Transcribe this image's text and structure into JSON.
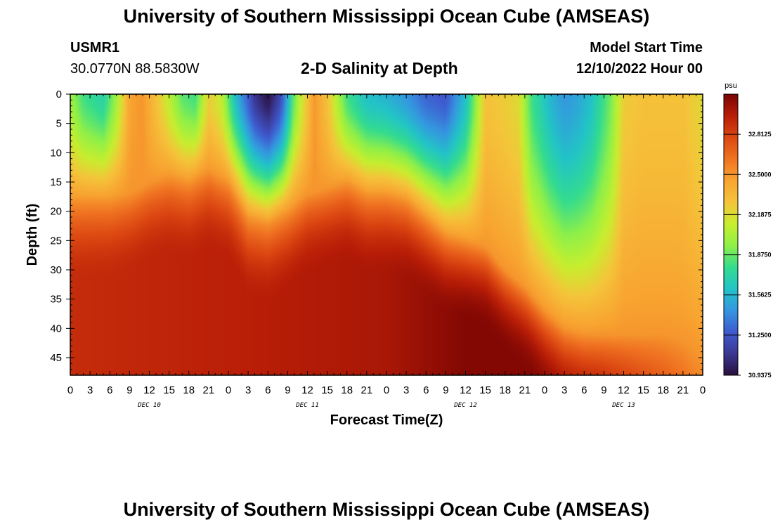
{
  "header": {
    "title": "University of Southern Mississippi Ocean Cube (AMSEAS)",
    "station_id": "USMR1",
    "coords": "30.0770N  88.5830W",
    "plot_title": "2-D Salinity at Depth",
    "model_start_label": "Model Start Time",
    "model_start_value": "12/10/2022 Hour 00"
  },
  "footer": {
    "title": "University of Southern Mississippi Ocean Cube (AMSEAS)"
  },
  "chart_data": {
    "type": "heatmap",
    "title": "2-D Salinity at Depth",
    "xlabel": "Forecast Time(Z)",
    "ylabel": "Depth (ft)",
    "x_unit": "hours",
    "xlim": [
      0,
      96
    ],
    "x_ticks": [
      0,
      3,
      6,
      9,
      12,
      15,
      18,
      21,
      24,
      27,
      30,
      33,
      36,
      39,
      42,
      45,
      48,
      51,
      54,
      57,
      60,
      63,
      66,
      69,
      72,
      75,
      78,
      81,
      84,
      87,
      90,
      93,
      96
    ],
    "x_tick_labels": [
      "0",
      "3",
      "6",
      "9",
      "12",
      "15",
      "18",
      "21",
      "0",
      "3",
      "6",
      "9",
      "12",
      "15",
      "18",
      "21",
      "0",
      "3",
      "6",
      "9",
      "12",
      "15",
      "18",
      "21",
      "0",
      "3",
      "6",
      "9",
      "12",
      "15",
      "18",
      "21",
      "0"
    ],
    "day_labels": [
      {
        "x": 12,
        "label": "DEC 10"
      },
      {
        "x": 36,
        "label": "DEC 11"
      },
      {
        "x": 60,
        "label": "DEC 12"
      },
      {
        "x": 84,
        "label": "DEC 13"
      }
    ],
    "ylim": [
      0,
      48
    ],
    "y_ticks": [
      0,
      5,
      10,
      15,
      20,
      25,
      30,
      35,
      40,
      45
    ],
    "colorbar": {
      "unit": "psu",
      "min": 30.9375,
      "max": 33.125,
      "tick_values": [
        30.9375,
        31.25,
        31.5625,
        31.875,
        32.1875,
        32.5,
        32.8125
      ],
      "tick_labels": [
        "30.9375",
        "31.2500",
        "31.5625",
        "31.8750",
        "32.1875",
        "32.5000",
        "32.8125"
      ],
      "colors": [
        "#2a0f3c",
        "#3b3893",
        "#3f5bd0",
        "#3596e0",
        "#22c4c7",
        "#34dc8e",
        "#8ff048",
        "#c8ee2e",
        "#f5c43a",
        "#f8a431",
        "#f07322",
        "#dc4812",
        "#b91e07",
        "#7a0403"
      ]
    },
    "surface_series": {
      "description": "Near-surface salinity (psu) at shallow depth vs forecast hour",
      "x": [
        0,
        2,
        5,
        7,
        9,
        11,
        14,
        17,
        19,
        21,
        23,
        25,
        28,
        30,
        32,
        34,
        37,
        39,
        42,
        45,
        48,
        51,
        54,
        57,
        60,
        63,
        66,
        68,
        70,
        73,
        75,
        77,
        79,
        82,
        84,
        87,
        90,
        93,
        96
      ],
      "values": [
        32.0,
        31.8,
        31.7,
        32.0,
        32.45,
        32.5,
        32.2,
        31.85,
        31.8,
        32.25,
        32.1,
        31.6,
        31.1,
        30.95,
        31.2,
        31.9,
        32.5,
        32.3,
        31.8,
        31.6,
        31.55,
        31.45,
        31.3,
        31.25,
        31.6,
        32.3,
        32.25,
        32.2,
        31.8,
        31.55,
        31.45,
        31.5,
        31.6,
        31.9,
        32.25,
        32.3,
        32.3,
        32.3,
        32.2
      ]
    },
    "halocline_depth_series": {
      "description": "Approximate depth (ft) of the 32.5 psu transition vs forecast hour",
      "x": [
        0,
        3,
        6,
        9,
        12,
        15,
        18,
        21,
        24,
        27,
        30,
        33,
        36,
        39,
        42,
        45,
        48,
        51,
        54,
        57,
        60,
        63,
        66,
        69,
        72,
        75,
        78,
        81,
        84,
        87,
        90,
        93,
        96
      ],
      "values": [
        18,
        18,
        18,
        17,
        15,
        14,
        15,
        13,
        15,
        21,
        22,
        20,
        17,
        16,
        15,
        17,
        17,
        18,
        21,
        24,
        25,
        26,
        30,
        33,
        37,
        40,
        41,
        41,
        41,
        41,
        41,
        42,
        45
      ]
    },
    "deep_series": {
      "x": [
        0,
        48,
        54,
        60,
        70,
        80,
        88,
        96
      ],
      "values": [
        32.9,
        33.0,
        33.05,
        33.1,
        33.1,
        33.0,
        32.8,
        32.6
      ]
    }
  }
}
